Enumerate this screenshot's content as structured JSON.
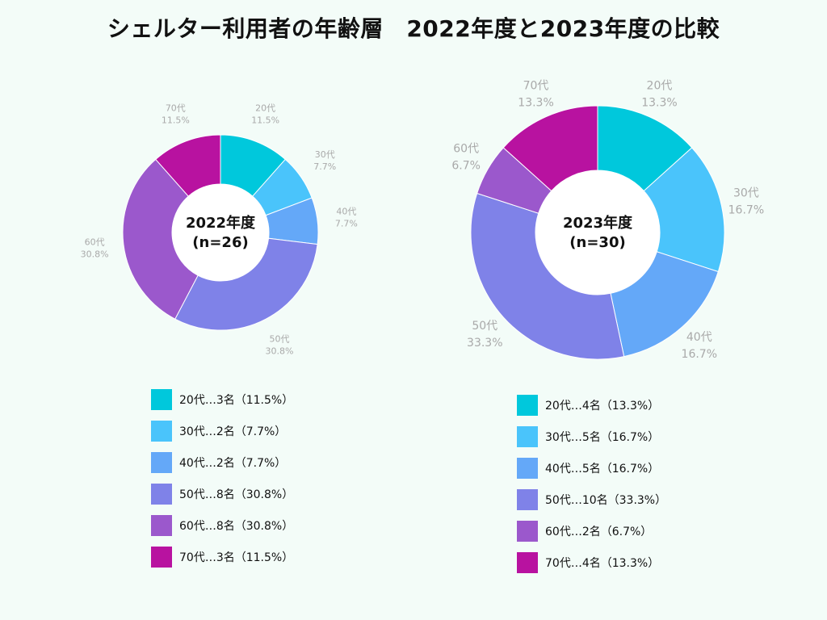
{
  "title": "シェルター利用者の年齢層　2022年度と2023年度の比較",
  "colors": {
    "20代": "#00c8dc",
    "30代": "#4ac4fb",
    "40代": "#64a8f8",
    "50代": "#7f82e8",
    "60代": "#9b58cc",
    "70代": "#b812a0",
    "label": "#a9a9a9",
    "center_fill": "#ffffff"
  },
  "chart_data": [
    {
      "type": "pie",
      "style": "donut",
      "title": "2022年度",
      "center_label": [
        "2022年度",
        "(n=26)"
      ],
      "n": 26,
      "categories": [
        "20代",
        "30代",
        "40代",
        "50代",
        "60代",
        "70代"
      ],
      "values": [
        3,
        2,
        2,
        8,
        8,
        3
      ],
      "percent_labels": [
        "11.5%",
        "7.7%",
        "7.7%",
        "30.8%",
        "30.8%",
        "11.5%"
      ],
      "legend": [
        "20代…3名（11.5%）",
        "30代…2名（7.7%）",
        "40代…2名（7.7%）",
        "50代…8名（30.8%）",
        "60代…8名（30.8%）",
        "70代…3名（11.5%）"
      ]
    },
    {
      "type": "pie",
      "style": "donut",
      "title": "2023年度",
      "center_label": [
        "2023年度",
        "(n=30)"
      ],
      "n": 30,
      "categories": [
        "20代",
        "30代",
        "40代",
        "50代",
        "60代",
        "70代"
      ],
      "values": [
        4,
        5,
        5,
        10,
        2,
        4
      ],
      "percent_labels": [
        "13.3%",
        "16.7%",
        "16.7%",
        "33.3%",
        "6.7%",
        "13.3%"
      ],
      "legend": [
        "20代…4名（13.3%）",
        "30代…5名（16.7%）",
        "40代…5名（16.7%）",
        "50代…10名（33.3%）",
        "60代…2名（6.7%）",
        "70代…4名（13.3%）"
      ]
    }
  ]
}
